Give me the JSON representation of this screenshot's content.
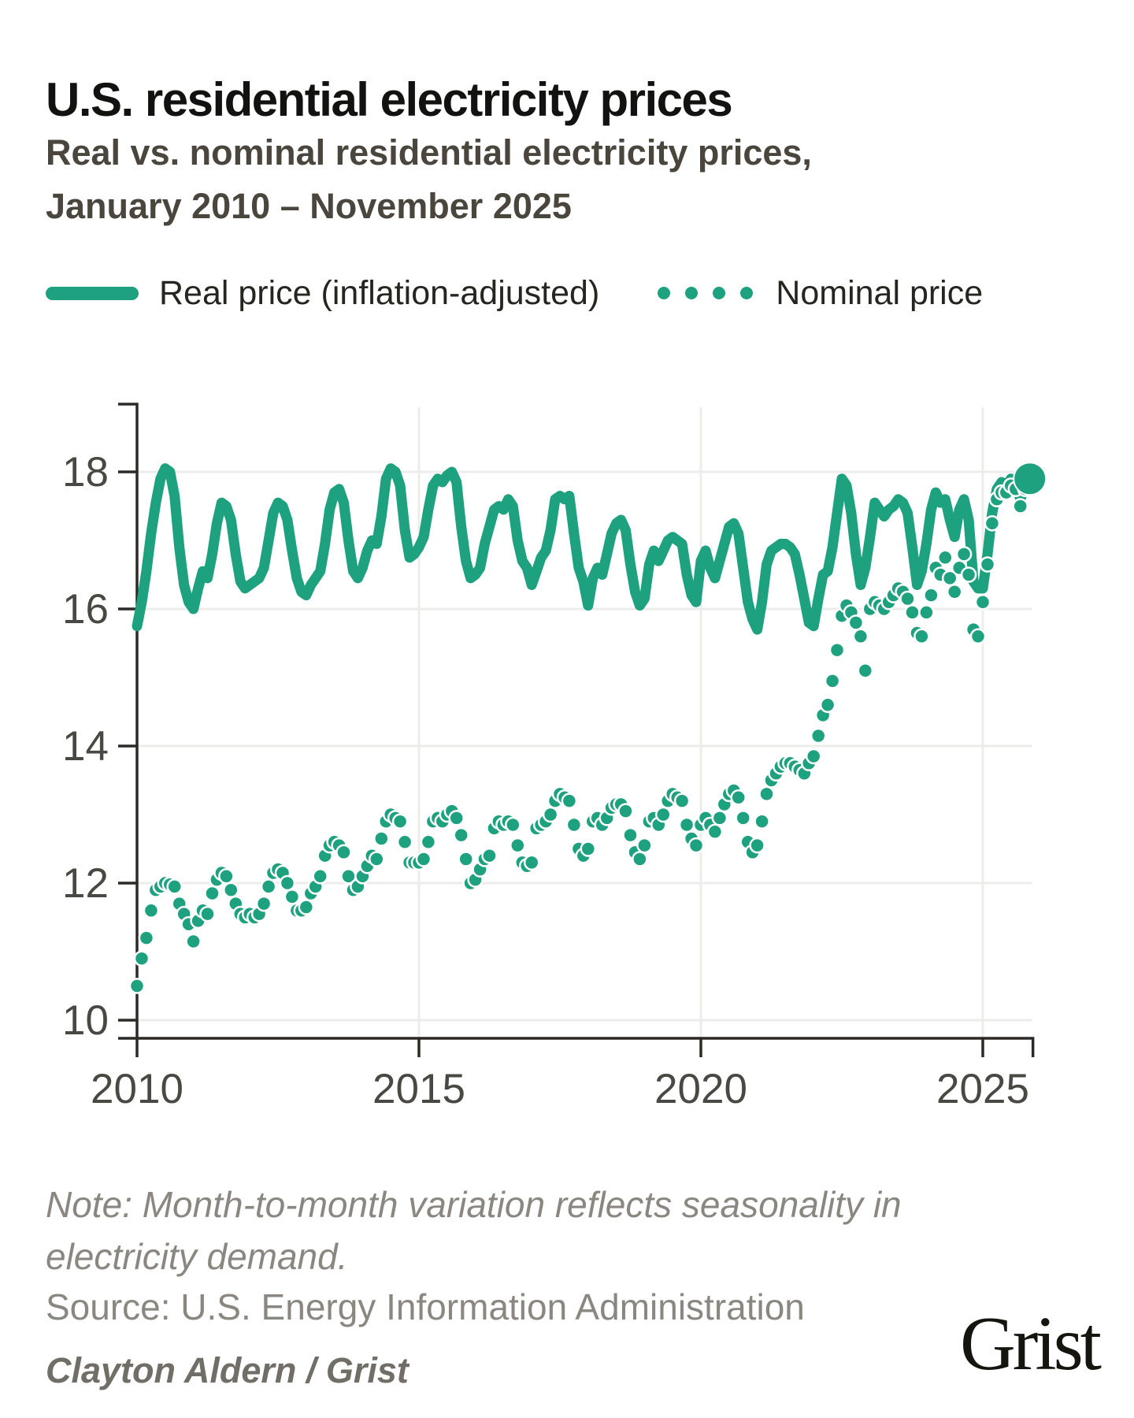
{
  "header": {
    "title": "U.S. residential electricity prices",
    "subtitle_line1": "Real vs. nominal residential electricity prices,",
    "subtitle_line2": "January 2010 – November 2025"
  },
  "legend": {
    "real_label": "Real price (inflation-adjusted)",
    "nominal_label": "Nominal price"
  },
  "footer": {
    "note_line1": "Note: Month-to-month variation reflects seasonality in",
    "note_line2": "electricity demand.",
    "source": "Source: U.S. Energy Information Administration",
    "credit": "Clayton Aldern / Grist",
    "logo": "Grist"
  },
  "colors": {
    "accent": "#1EA17E",
    "axis": "#2B2A26",
    "grid": "#ECECEA",
    "tick_label": "#4A4842",
    "title": "#121210",
    "subtitle": "#4A463E",
    "legend_text": "#26251F",
    "note": "#8A8780",
    "credit": "#716E67",
    "logo": "#15140F"
  },
  "chart_data": {
    "type": "line",
    "title": "U.S. residential electricity prices",
    "x_start": "2010-01",
    "x_end": "2025-11",
    "x_ticks": [
      2010,
      2015,
      2020,
      2025
    ],
    "y_ticks": [
      10,
      12,
      14,
      16,
      18
    ],
    "ylim": [
      9.7,
      19.0
    ],
    "grid": true,
    "legend_position": "top",
    "series": [
      {
        "name": "Real price (inflation-adjusted)",
        "style": "solid-line",
        "years": [
          {
            "year": 2010,
            "values": [
              15.75,
              16.1,
              16.55,
              17.1,
              17.55,
              17.9,
              18.05,
              18.0,
              17.65,
              16.9,
              16.35,
              16.1
            ]
          },
          {
            "year": 2011,
            "values": [
              16.0,
              16.3,
              16.55,
              16.45,
              16.8,
              17.25,
              17.55,
              17.5,
              17.3,
              16.8,
              16.4,
              16.3
            ]
          },
          {
            "year": 2012,
            "values": [
              16.35,
              16.4,
              16.45,
              16.6,
              17.0,
              17.4,
              17.55,
              17.5,
              17.3,
              16.85,
              16.45,
              16.25
            ]
          },
          {
            "year": 2013,
            "values": [
              16.2,
              16.35,
              16.45,
              16.55,
              16.95,
              17.45,
              17.7,
              17.75,
              17.55,
              17.0,
              16.55,
              16.45
            ]
          },
          {
            "year": 2014,
            "values": [
              16.6,
              16.85,
              17.0,
              16.95,
              17.35,
              17.9,
              18.05,
              18.0,
              17.8,
              17.15,
              16.75,
              16.8
            ]
          },
          {
            "year": 2015,
            "values": [
              16.9,
              17.05,
              17.45,
              17.8,
              17.9,
              17.85,
              17.95,
              18.0,
              17.85,
              17.2,
              16.7,
              16.45
            ]
          },
          {
            "year": 2016,
            "values": [
              16.5,
              16.6,
              16.95,
              17.2,
              17.45,
              17.5,
              17.45,
              17.6,
              17.5,
              17.0,
              16.7,
              16.6
            ]
          },
          {
            "year": 2017,
            "values": [
              16.35,
              16.55,
              16.75,
              16.85,
              17.15,
              17.6,
              17.65,
              17.6,
              17.65,
              17.1,
              16.6,
              16.4
            ]
          },
          {
            "year": 2018,
            "values": [
              16.05,
              16.45,
              16.6,
              16.5,
              16.8,
              17.1,
              17.25,
              17.3,
              17.15,
              16.65,
              16.25,
              16.05
            ]
          },
          {
            "year": 2019,
            "values": [
              16.15,
              16.65,
              16.85,
              16.7,
              16.85,
              17.0,
              17.05,
              17.0,
              16.95,
              16.5,
              16.2,
              16.1
            ]
          },
          {
            "year": 2020,
            "values": [
              16.7,
              16.85,
              16.6,
              16.45,
              16.7,
              16.95,
              17.2,
              17.25,
              17.1,
              16.6,
              16.1,
              15.85
            ]
          },
          {
            "year": 2021,
            "values": [
              15.7,
              16.1,
              16.65,
              16.85,
              16.9,
              16.95,
              16.95,
              16.9,
              16.8,
              16.5,
              16.15,
              15.8
            ]
          },
          {
            "year": 2022,
            "values": [
              15.75,
              16.15,
              16.5,
              16.55,
              16.9,
              17.4,
              17.9,
              17.8,
              17.4,
              16.8,
              16.35,
              16.6
            ]
          },
          {
            "year": 2023,
            "values": [
              17.05,
              17.55,
              17.45,
              17.35,
              17.45,
              17.5,
              17.6,
              17.55,
              17.4,
              16.9,
              16.35,
              16.55
            ]
          },
          {
            "year": 2024,
            "values": [
              16.95,
              17.45,
              17.7,
              17.55,
              17.6,
              17.3,
              17.05,
              17.45,
              17.6,
              17.3,
              16.4,
              16.3
            ]
          },
          {
            "year": 2025,
            "values": [
              16.3,
              16.8,
              17.4,
              17.75,
              17.85,
              17.8,
              17.9,
              17.85,
              17.6,
              17.8,
              17.9
            ]
          }
        ]
      },
      {
        "name": "Nominal price",
        "style": "dots",
        "end_marker": true,
        "years": [
          {
            "year": 2010,
            "values": [
              10.5,
              10.9,
              11.2,
              11.6,
              11.9,
              11.95,
              12.0,
              11.98,
              11.95,
              11.7,
              11.55,
              11.4
            ]
          },
          {
            "year": 2011,
            "values": [
              11.15,
              11.45,
              11.6,
              11.55,
              11.85,
              12.05,
              12.15,
              12.1,
              11.9,
              11.7,
              11.55,
              11.5
            ]
          },
          {
            "year": 2012,
            "values": [
              11.55,
              11.5,
              11.55,
              11.7,
              11.95,
              12.15,
              12.2,
              12.15,
              12.0,
              11.8,
              11.6,
              11.6
            ]
          },
          {
            "year": 2013,
            "values": [
              11.65,
              11.85,
              11.95,
              12.1,
              12.4,
              12.55,
              12.6,
              12.55,
              12.45,
              12.1,
              11.9,
              11.95
            ]
          },
          {
            "year": 2014,
            "values": [
              12.1,
              12.25,
              12.4,
              12.35,
              12.65,
              12.9,
              13.0,
              12.95,
              12.9,
              12.6,
              12.3,
              12.3
            ]
          },
          {
            "year": 2015,
            "values": [
              12.3,
              12.35,
              12.6,
              12.9,
              12.95,
              12.9,
              13.0,
              13.05,
              12.95,
              12.7,
              12.35,
              12.0
            ]
          },
          {
            "year": 2016,
            "values": [
              12.05,
              12.2,
              12.35,
              12.4,
              12.8,
              12.9,
              12.85,
              12.9,
              12.85,
              12.55,
              12.3,
              12.25
            ]
          },
          {
            "year": 2017,
            "values": [
              12.3,
              12.8,
              12.85,
              12.9,
              13.0,
              13.2,
              13.3,
              13.25,
              13.2,
              12.85,
              12.5,
              12.4
            ]
          },
          {
            "year": 2018,
            "values": [
              12.5,
              12.9,
              12.95,
              12.85,
              12.95,
              13.1,
              13.15,
              13.15,
              13.05,
              12.7,
              12.45,
              12.35
            ]
          },
          {
            "year": 2019,
            "values": [
              12.55,
              12.9,
              12.95,
              12.85,
              13.0,
              13.2,
              13.3,
              13.25,
              13.2,
              12.85,
              12.65,
              12.55
            ]
          },
          {
            "year": 2020,
            "values": [
              12.85,
              12.95,
              12.85,
              12.75,
              12.95,
              13.15,
              13.3,
              13.35,
              13.25,
              12.95,
              12.6,
              12.45
            ]
          },
          {
            "year": 2021,
            "values": [
              12.55,
              12.9,
              13.3,
              13.5,
              13.6,
              13.7,
              13.75,
              13.75,
              13.7,
              13.65,
              13.6,
              13.75
            ]
          },
          {
            "year": 2022,
            "values": [
              13.85,
              14.15,
              14.45,
              14.6,
              14.95,
              15.4,
              15.9,
              16.05,
              15.95,
              15.8,
              15.6,
              15.1
            ]
          },
          {
            "year": 2023,
            "values": [
              16.0,
              16.1,
              16.05,
              16.0,
              16.1,
              16.2,
              16.3,
              16.25,
              16.15,
              15.95,
              15.65,
              15.6
            ]
          },
          {
            "year": 2024,
            "values": [
              15.95,
              16.2,
              16.6,
              16.5,
              16.75,
              16.45,
              16.25,
              16.6,
              16.8,
              16.5,
              15.7,
              15.6
            ]
          },
          {
            "year": 2025,
            "values": [
              16.1,
              16.65,
              17.25,
              17.6,
              17.7,
              17.7,
              17.8,
              17.75,
              17.5,
              17.75,
              17.9
            ]
          }
        ]
      }
    ]
  }
}
